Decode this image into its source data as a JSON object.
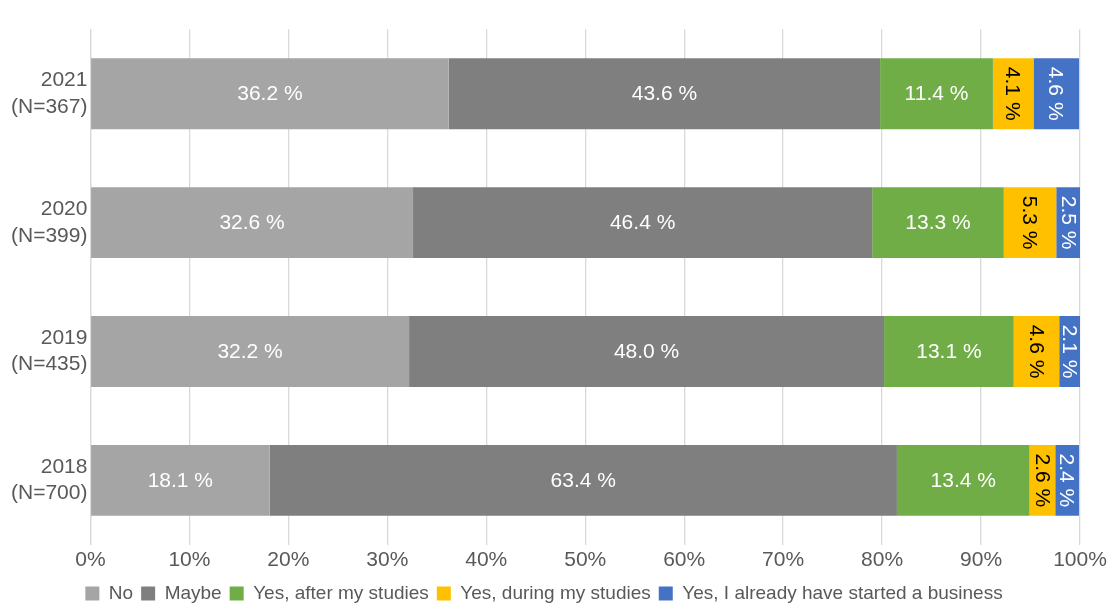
{
  "chart_data": {
    "type": "bar",
    "orientation": "horizontal",
    "stacked": true,
    "categories": [
      "2021\n(N=367)",
      "2020\n(N=399)",
      "2019\n(N=435)",
      "2018\n(N=700)"
    ],
    "series": [
      {
        "name": "No",
        "color": "#a5a5a5",
        "values": [
          36.2,
          32.6,
          32.2,
          18.1
        ],
        "value_labels": [
          "36.2 %",
          "32.6 %",
          "32.2 %",
          "18.1 %"
        ]
      },
      {
        "name": "Maybe",
        "color": "#7f7f7f",
        "values": [
          43.6,
          46.4,
          48.0,
          63.4
        ],
        "value_labels": [
          "43.6 %",
          "46.4 %",
          "48.0 %",
          "63.4 %"
        ]
      },
      {
        "name": "Yes, after my studies",
        "color": "#70ad47",
        "values": [
          11.4,
          13.3,
          13.1,
          13.4
        ],
        "value_labels": [
          "11.4 %",
          "13.3 %",
          "13.1 %",
          "13.4 %"
        ]
      },
      {
        "name": "Yes, during my studies",
        "color": "#ffc000",
        "values": [
          4.1,
          5.3,
          4.6,
          2.6
        ],
        "value_labels": [
          "4.1 %",
          "5.3 %",
          "4.6 %",
          "2.6 %"
        ]
      },
      {
        "name": "Yes, I already have started a business",
        "color": "#4472c4",
        "values": [
          4.6,
          2.5,
          2.1,
          2.4
        ],
        "value_labels": [
          "4.6 %",
          "2.5 %",
          "2.1 %",
          "2.4 %"
        ]
      }
    ],
    "xlim": [
      0,
      100
    ],
    "xticks": [
      {
        "value": 0,
        "label": "0%"
      },
      {
        "value": 10,
        "label": "10%"
      },
      {
        "value": 20,
        "label": "20%"
      },
      {
        "value": 30,
        "label": "30%"
      },
      {
        "value": 40,
        "label": "40%"
      },
      {
        "value": 50,
        "label": "50%"
      },
      {
        "value": 60,
        "label": "60%"
      },
      {
        "value": 70,
        "label": "70%"
      },
      {
        "value": 80,
        "label": "80%"
      },
      {
        "value": 90,
        "label": "90%"
      },
      {
        "value": 100,
        "label": "100%"
      }
    ],
    "grid": "x",
    "legend": "bottom"
  }
}
